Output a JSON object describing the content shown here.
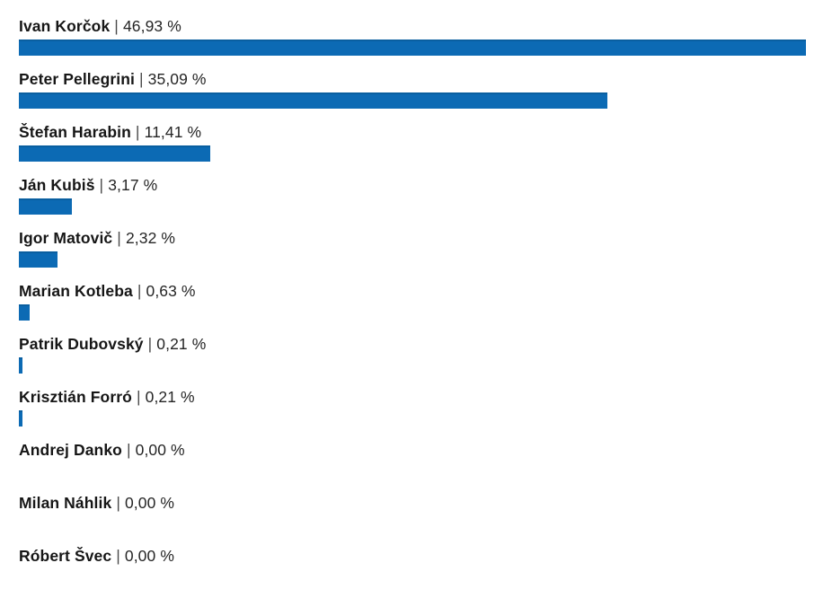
{
  "page": {
    "background_color": "#ffffff"
  },
  "chart": {
    "bar_color": "#0c6ab4",
    "bar_top_edge_color": "#0a5fa0",
    "name_text_color": "#161616",
    "value_text_color": "#252525",
    "separator": "|"
  },
  "chart_data": {
    "type": "bar",
    "orientation": "horizontal",
    "title": "",
    "xlabel": "",
    "ylabel": "",
    "xlim": [
      0,
      46.93
    ],
    "grid": false,
    "legend": false,
    "scale_note": "bars scaled relative to max value (46.93% = full width)",
    "categories": [
      "Ivan Korčok",
      "Peter Pellegrini",
      "Štefan Harabin",
      "Ján Kubiš",
      "Igor Matovič",
      "Marian Kotleba",
      "Patrik Dubovský",
      "Krisztián Forró",
      "Andrej Danko",
      "Milan Náhlik",
      "Róbert Švec"
    ],
    "values": [
      46.93,
      35.09,
      11.41,
      3.17,
      2.32,
      0.63,
      0.21,
      0.21,
      0.0,
      0.0,
      0.0
    ],
    "value_labels": [
      "46,93 %",
      "35,09 %",
      "11,41 %",
      "3,17 %",
      "2,32 %",
      "0,63 %",
      "0,21 %",
      "0,21 %",
      "0,00 %",
      "0,00 %",
      "0,00 %"
    ]
  }
}
